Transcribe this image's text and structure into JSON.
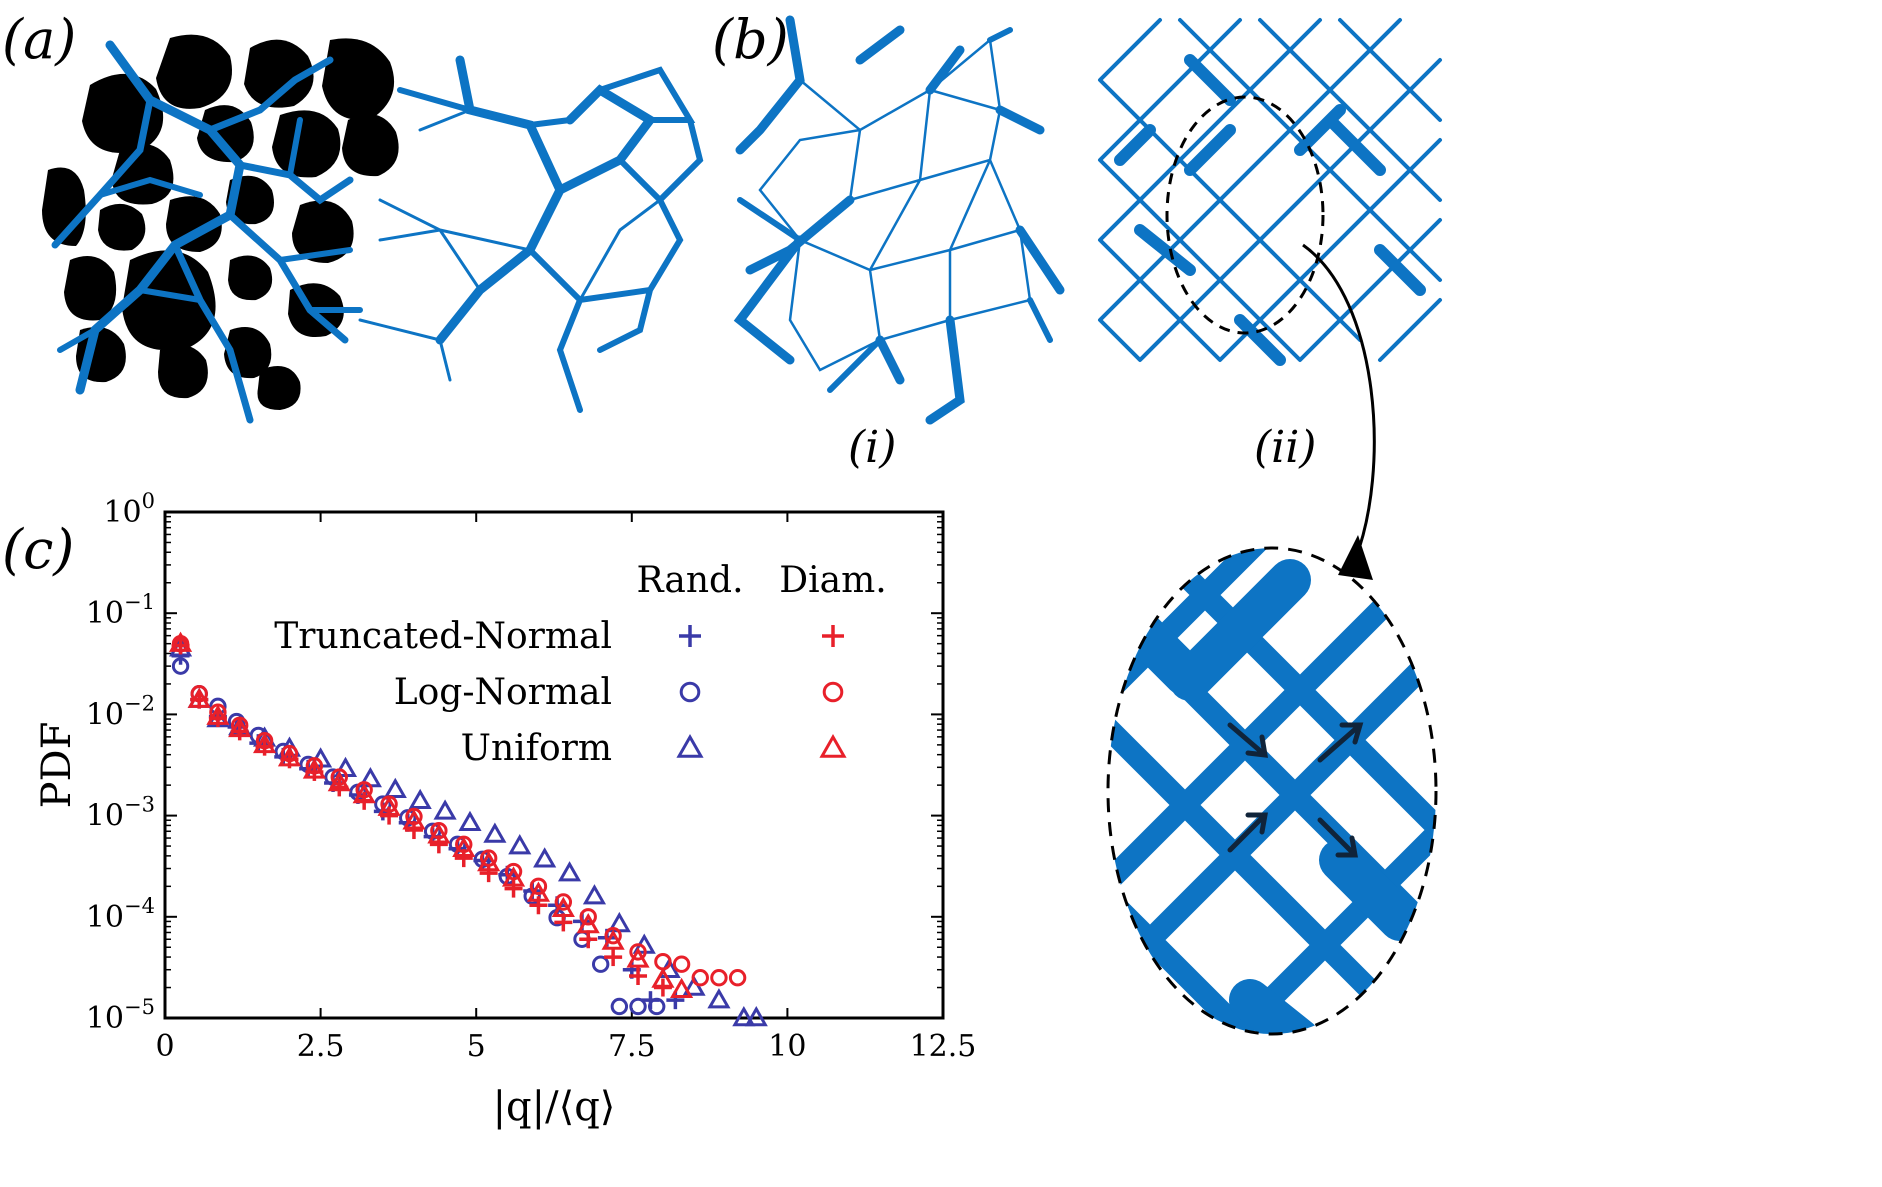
{
  "panels": {
    "a": "(a)",
    "b": "(b)",
    "c": "(c)",
    "b_i": "(i)",
    "b_ii": "(ii)"
  },
  "colors": {
    "network": "#0d74c4",
    "random": "#3a3aa8",
    "diameter": "#e8202a",
    "grains": "#000000"
  },
  "chart_data": {
    "type": "scatter",
    "xlabel": "|q|/⟨q⟩",
    "ylabel": "PDF",
    "xlim": [
      0,
      12.5
    ],
    "ylim": [
      1e-05,
      1
    ],
    "yscale": "log",
    "x_ticks": [
      "0",
      "2.5",
      "5",
      "7.5",
      "10",
      "12.5"
    ],
    "y_ticks": [
      {
        "base": "10",
        "exp": "0"
      },
      {
        "base": "10",
        "exp": "−1"
      },
      {
        "base": "10",
        "exp": "−2"
      },
      {
        "base": "10",
        "exp": "−3"
      },
      {
        "base": "10",
        "exp": "−4"
      },
      {
        "base": "10",
        "exp": "−5"
      }
    ],
    "legend": {
      "col_headers": [
        "Rand.",
        "Diam."
      ],
      "rows": [
        "Truncated-Normal",
        "Log-Normal",
        "Uniform"
      ],
      "placement": "top-right"
    },
    "series": [
      {
        "group": "random",
        "marker": "plus",
        "x": [
          0.25,
          0.55,
          0.85,
          1.15,
          1.5,
          1.9,
          2.3,
          2.7,
          3.1,
          3.5,
          3.9,
          4.3,
          4.7,
          5.1,
          5.5,
          5.9,
          6.3,
          6.7,
          7.1,
          7.5,
          7.8,
          8.2
        ],
        "y": [
          0.038,
          0.014,
          0.0095,
          0.0075,
          0.0052,
          0.0038,
          0.0029,
          0.0021,
          0.0016,
          0.0011,
          0.00085,
          0.00062,
          0.00047,
          0.00036,
          0.00026,
          0.00018,
          0.00013,
          9e-05,
          6.2e-05,
          3e-05,
          1.5e-05,
          1.5e-05
        ]
      },
      {
        "group": "random",
        "marker": "circle",
        "x": [
          0.25,
          0.55,
          0.85,
          1.15,
          1.5,
          1.9,
          2.3,
          2.7,
          3.1,
          3.5,
          3.9,
          4.3,
          4.7,
          5.1,
          5.5,
          5.9,
          6.3,
          6.7,
          7.0,
          7.3,
          7.6,
          7.9
        ],
        "y": [
          0.03,
          0.016,
          0.012,
          0.0085,
          0.0062,
          0.0043,
          0.0032,
          0.0024,
          0.0017,
          0.0013,
          0.00095,
          0.0007,
          0.00052,
          0.00037,
          0.00025,
          0.00016,
          9.8e-05,
          6e-05,
          3.4e-05,
          1.3e-05,
          1.3e-05,
          1.3e-05
        ]
      },
      {
        "group": "random",
        "marker": "triangle",
        "x": [
          0.25,
          0.55,
          0.85,
          1.2,
          1.6,
          2.0,
          2.5,
          2.9,
          3.3,
          3.7,
          4.1,
          4.5,
          4.9,
          5.3,
          5.7,
          6.1,
          6.5,
          6.9,
          7.3,
          7.7,
          8.1,
          8.5,
          8.9,
          9.3,
          9.5
        ],
        "y": [
          0.045,
          0.014,
          0.009,
          0.0075,
          0.0058,
          0.0046,
          0.0036,
          0.0029,
          0.0023,
          0.0018,
          0.0014,
          0.0011,
          0.00085,
          0.00065,
          0.0005,
          0.00037,
          0.00027,
          0.00016,
          8.5e-05,
          5.2e-05,
          3e-05,
          2e-05,
          1.5e-05,
          1e-05,
          1e-05
        ]
      },
      {
        "group": "diameter",
        "marker": "plus",
        "x": [
          0.25,
          0.55,
          0.85,
          1.2,
          1.6,
          2.0,
          2.4,
          2.8,
          3.2,
          3.6,
          4.0,
          4.4,
          4.8,
          5.2,
          5.6,
          6.0,
          6.4,
          6.8,
          7.2,
          7.6,
          8.0
        ],
        "y": [
          0.048,
          0.014,
          0.0092,
          0.0068,
          0.0048,
          0.0036,
          0.0027,
          0.0019,
          0.0014,
          0.001,
          0.00072,
          0.00052,
          0.00038,
          0.00027,
          0.00019,
          0.00013,
          8.8e-05,
          6e-05,
          4e-05,
          2.6e-05,
          2e-05
        ]
      },
      {
        "group": "diameter",
        "marker": "circle",
        "x": [
          0.25,
          0.55,
          0.85,
          1.2,
          1.6,
          2.0,
          2.4,
          2.8,
          3.2,
          3.6,
          4.0,
          4.4,
          4.8,
          5.2,
          5.6,
          6.0,
          6.4,
          6.8,
          7.2,
          7.6,
          8.0,
          8.3,
          8.6,
          8.9,
          9.2
        ],
        "y": [
          0.05,
          0.016,
          0.0105,
          0.0078,
          0.0055,
          0.0041,
          0.0031,
          0.0024,
          0.0018,
          0.0013,
          0.00098,
          0.00071,
          0.00052,
          0.00038,
          0.00028,
          0.0002,
          0.00014,
          0.0001,
          6.5e-05,
          4.5e-05,
          3.6e-05,
          3.4e-05,
          2.5e-05,
          2.5e-05,
          2.5e-05
        ]
      },
      {
        "group": "diameter",
        "marker": "triangle",
        "x": [
          0.25,
          0.55,
          0.85,
          1.2,
          1.6,
          2.0,
          2.4,
          2.8,
          3.2,
          3.6,
          4.0,
          4.4,
          4.8,
          5.2,
          5.6,
          6.0,
          6.4,
          6.8,
          7.2,
          7.6,
          8.0,
          8.3
        ],
        "y": [
          0.05,
          0.014,
          0.0095,
          0.0072,
          0.005,
          0.0037,
          0.0028,
          0.0021,
          0.0016,
          0.0012,
          0.00088,
          0.00064,
          0.00047,
          0.00034,
          0.00024,
          0.00017,
          0.00012,
          8.3e-05,
          5.7e-05,
          3.8e-05,
          2.4e-05,
          1.9e-05
        ]
      }
    ]
  }
}
